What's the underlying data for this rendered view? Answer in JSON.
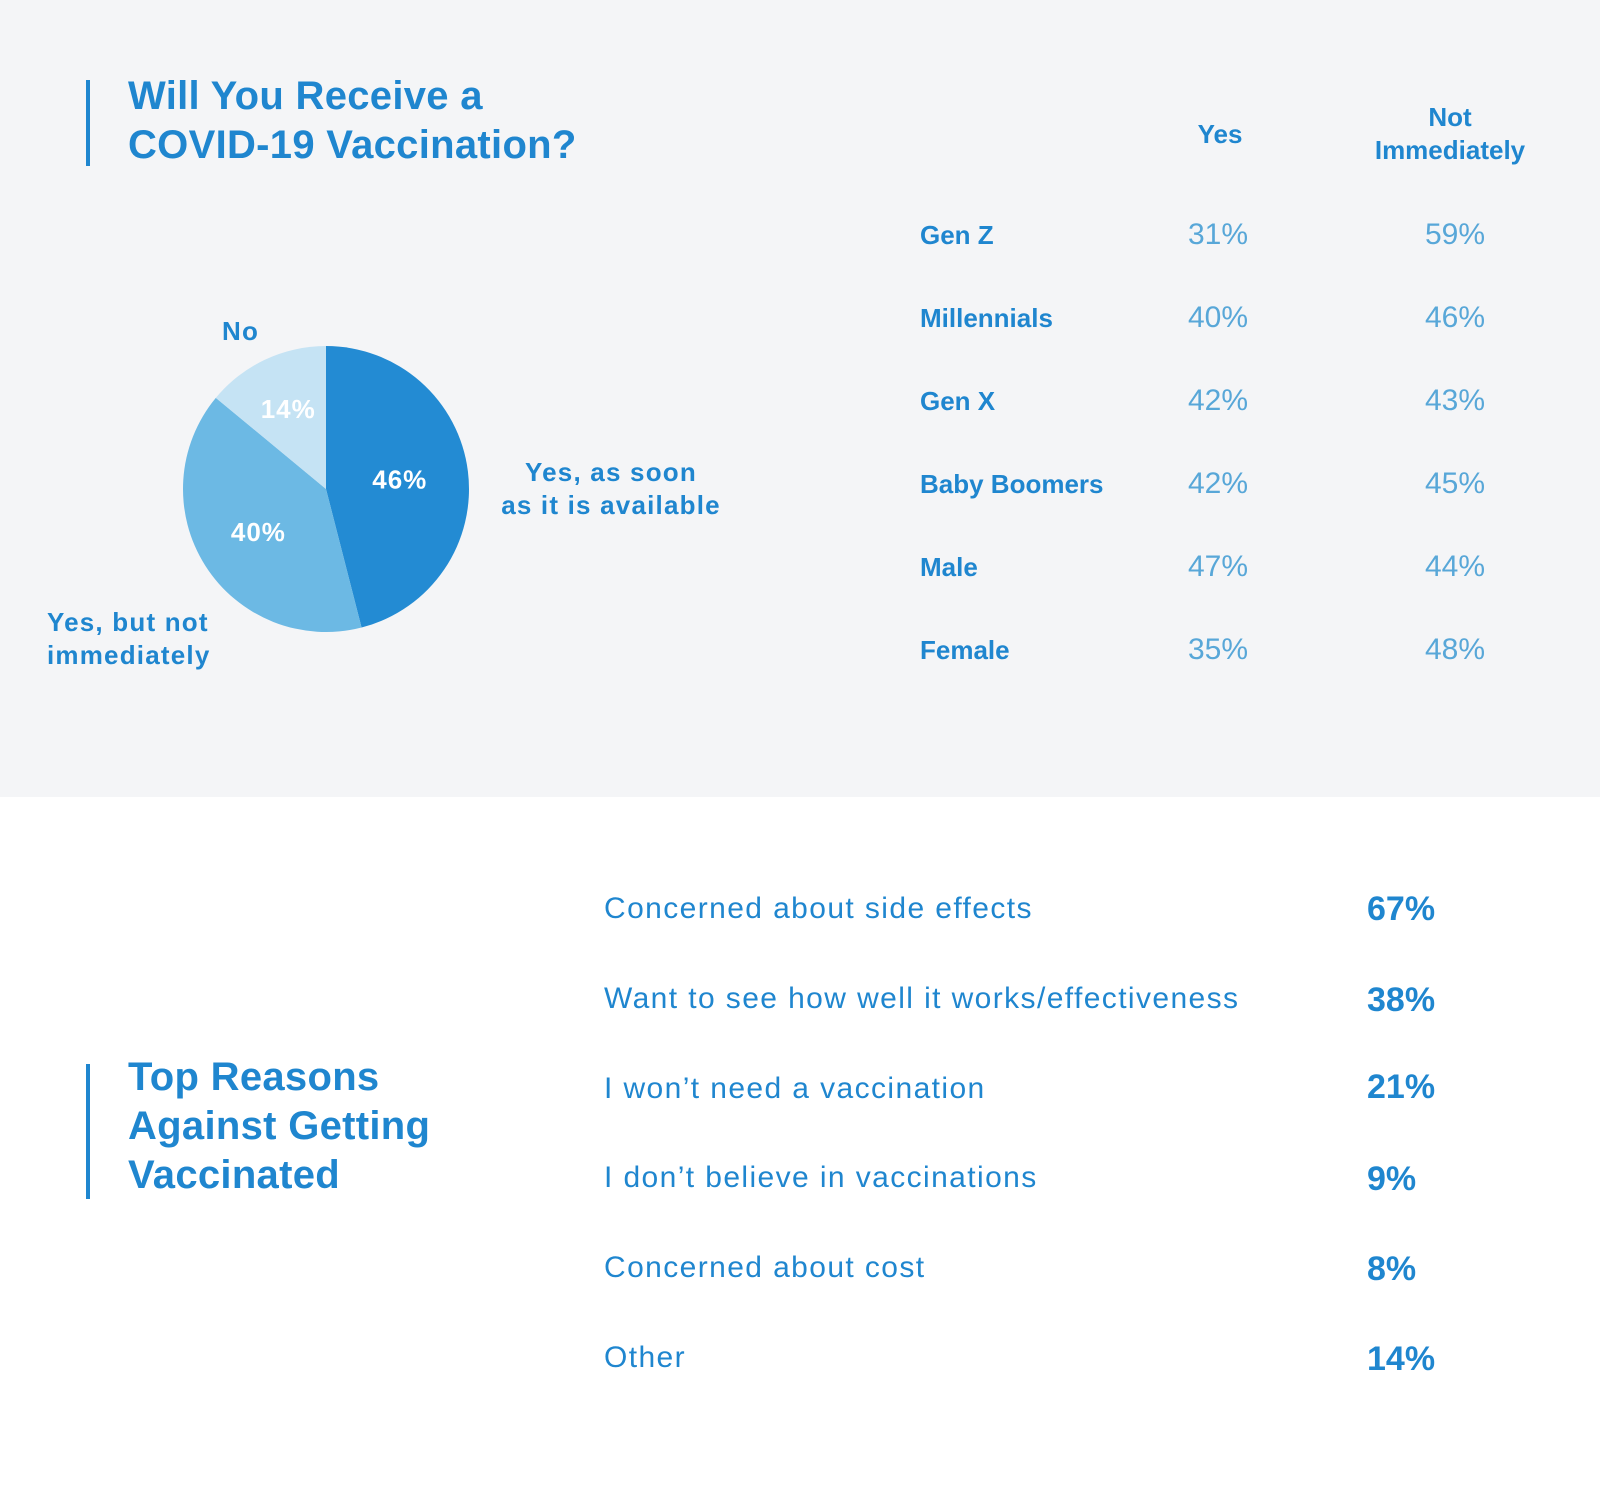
{
  "vaccination_section": {
    "title_line1": "Will You Receive a",
    "title_line2": "COVID-19 Vaccination?",
    "table": {
      "col_yes": "Yes",
      "col_not_line1": "Not",
      "col_not_line2": "Immediately",
      "rows": [
        {
          "label": "Gen Z",
          "yes": "31%",
          "not_immediately": "59%"
        },
        {
          "label": "Millennials",
          "yes": "40%",
          "not_immediately": "46%"
        },
        {
          "label": "Gen X",
          "yes": "42%",
          "not_immediately": "43%"
        },
        {
          "label": "Baby Boomers",
          "yes": "42%",
          "not_immediately": "45%"
        },
        {
          "label": "Male",
          "yes": "47%",
          "not_immediately": "44%"
        },
        {
          "label": "Female",
          "yes": "35%",
          "not_immediately": "48%"
        }
      ]
    }
  },
  "reasons_section": {
    "title_line1": "Top Reasons",
    "title_line2": "Against Getting",
    "title_line3": "Vaccinated",
    "items": [
      {
        "label": "Concerned about side effects",
        "value": "67%"
      },
      {
        "label": "Want to see how well it works/effectiveness",
        "value": "38%"
      },
      {
        "label": "I won’t need a vaccination",
        "value": "21%"
      },
      {
        "label": "I don’t believe in vaccinations",
        "value": "9%"
      },
      {
        "label": "Concerned about cost",
        "value": "8%"
      },
      {
        "label": "Other",
        "value": "14%"
      }
    ]
  },
  "chart_data": {
    "type": "pie",
    "title": "Will You Receive a COVID-19 Vaccination?",
    "slices": [
      {
        "label_line1": "Yes, as soon",
        "label_line2": "as it is available",
        "value": 46,
        "display": "46%",
        "color": "#238bd3"
      },
      {
        "label_line1": "Yes, but not",
        "label_line2": "immediately",
        "value": 40,
        "display": "40%",
        "color": "#6cb9e4"
      },
      {
        "label_line1": "No",
        "label_line2": "",
        "value": 14,
        "display": "14%",
        "color": "#c5e3f4"
      }
    ],
    "start_angle": "12 o'clock",
    "direction": "clockwise"
  },
  "colors": {
    "accent": "#1f86cf",
    "value_light": "#58a7d8",
    "top_background": "#f4f5f7"
  }
}
